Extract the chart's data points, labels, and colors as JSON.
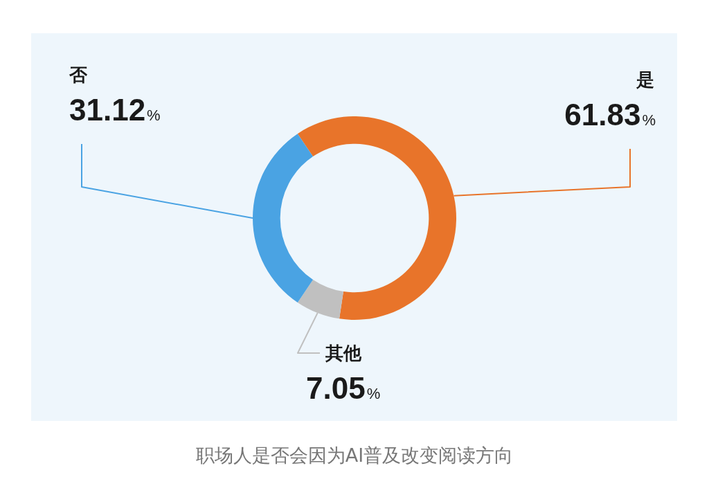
{
  "chart_data": {
    "type": "donut",
    "title": "职场人是否会因为AI普及改变阅读方向",
    "categories": [
      "是",
      "其他",
      "否"
    ],
    "values": [
      61.83,
      7.05,
      31.12
    ],
    "colors": [
      "#e8742a",
      "#c0c0c0",
      "#4aa3e3"
    ],
    "value_labels": [
      "61.83%",
      "7.05%",
      "31.12%"
    ],
    "legend": false
  }
}
